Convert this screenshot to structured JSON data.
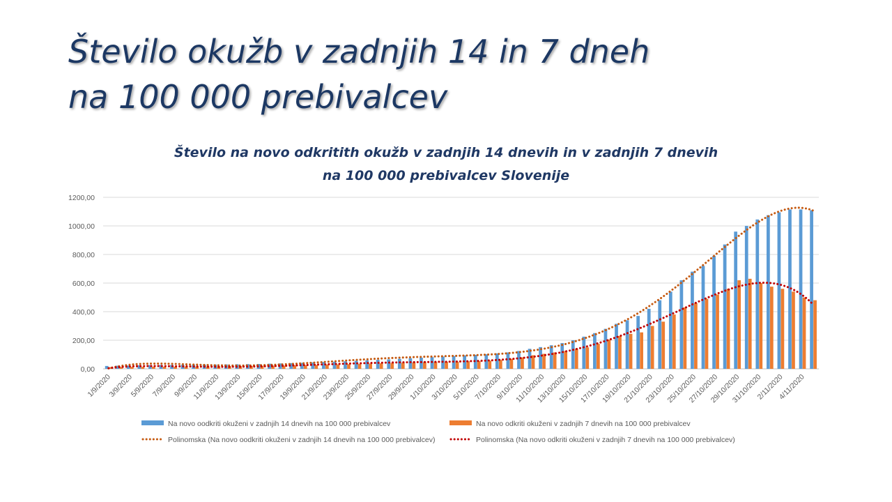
{
  "slide_title": [
    "Število okužb v zadnjih 14 in 7 dneh",
    "na 100 000 prebivalcev"
  ],
  "chart_data": {
    "type": "bar",
    "title": [
      "Število na novo odkritith okužb v zadnjih 14 dnevih in v zadnjih 7 dnevih",
      "na 100 000 prebivalcev Slovenije"
    ],
    "categories": [
      "1/9/2020",
      null,
      "3/9/2020",
      null,
      "5/9/2020",
      null,
      "7/9/2020",
      null,
      "9/9/2020",
      null,
      "11/9/2020",
      null,
      "13/9/2020",
      null,
      "15/9/2020",
      null,
      "17/9/2020",
      null,
      "19/9/2020",
      null,
      "21/9/2020",
      null,
      "23/9/2020",
      null,
      "25/9/2020",
      null,
      "27/9/2020",
      null,
      "29/9/2020",
      null,
      "1/10/2020",
      null,
      "3/10/2020",
      null,
      "5/10/2020",
      null,
      "7/10/2020",
      null,
      "9/10/2020",
      null,
      "11/10/2020",
      null,
      "13/10/2020",
      null,
      "15/10/2020",
      null,
      "17/10/2020",
      null,
      "19/10/2020",
      null,
      "21/10/2020",
      null,
      "23/10/2020",
      null,
      "25/10/2020",
      null,
      "27/10/2020",
      null,
      "29/10/2020",
      null,
      "31/10/2020",
      null,
      "2/11/2020",
      null,
      "4/11/2020",
      null
    ],
    "series": [
      {
        "name": "Na novo oodkriti okuženi v zadnjih 14 dnevih na 100 000 prebivalcev",
        "color": "#5b9bd5",
        "values": [
          20,
          22,
          23,
          25,
          26,
          27,
          27,
          28,
          28,
          29,
          30,
          31,
          32,
          33,
          34,
          36,
          38,
          40,
          42,
          45,
          48,
          50,
          53,
          56,
          60,
          63,
          66,
          70,
          74,
          78,
          82,
          86,
          90,
          94,
          98,
          102,
          108,
          115,
          125,
          140,
          152,
          165,
          180,
          200,
          225,
          250,
          280,
          315,
          340,
          370,
          420,
          480,
          540,
          620,
          680,
          720,
          790,
          870,
          960,
          1000,
          1045,
          1075,
          1095,
          1115,
          1115,
          1110
        ],
        "trendline": {
          "name": "Polinomska (Na novo oodkriti okuženi v zadnjih 14 dnevih na 100 000 prebivalcev)",
          "color": "#c55a11",
          "type": "polynomial"
        }
      },
      {
        "name": "Na novo odkriti okuženi v zadnjih 7 dnevih na 100 000 prebivalcev",
        "color": "#ed7d31",
        "values": [
          12,
          13,
          14,
          14,
          15,
          15,
          15,
          16,
          16,
          17,
          17,
          18,
          19,
          20,
          21,
          22,
          23,
          25,
          26,
          28,
          30,
          31,
          33,
          35,
          37,
          39,
          41,
          43,
          45,
          47,
          48,
          49,
          50,
          52,
          54,
          57,
          62,
          70,
          80,
          95,
          105,
          115,
          125,
          140,
          150,
          175,
          205,
          230,
          245,
          255,
          300,
          330,
          380,
          430,
          460,
          490,
          520,
          560,
          620,
          630,
          600,
          575,
          560,
          540,
          500,
          480
        ],
        "trendline": {
          "name": "Polinomska (Na novo odkriti okuženi v zadnjih 7 dnevih na 100 000 prebivalcev)",
          "color": "#c00000",
          "type": "polynomial"
        }
      }
    ],
    "ylim": [
      0,
      1200
    ],
    "yticks": [
      {
        "value": 0,
        "label": "0,00"
      },
      {
        "value": 200,
        "label": "200,00"
      },
      {
        "value": 400,
        "label": "400,00"
      },
      {
        "value": 600,
        "label": "600,00"
      },
      {
        "value": 800,
        "label": "800,00"
      },
      {
        "value": 1000,
        "label": "1000,00"
      },
      {
        "value": 1200,
        "label": "1200,00"
      }
    ],
    "grid": true,
    "legend": "bottom"
  }
}
